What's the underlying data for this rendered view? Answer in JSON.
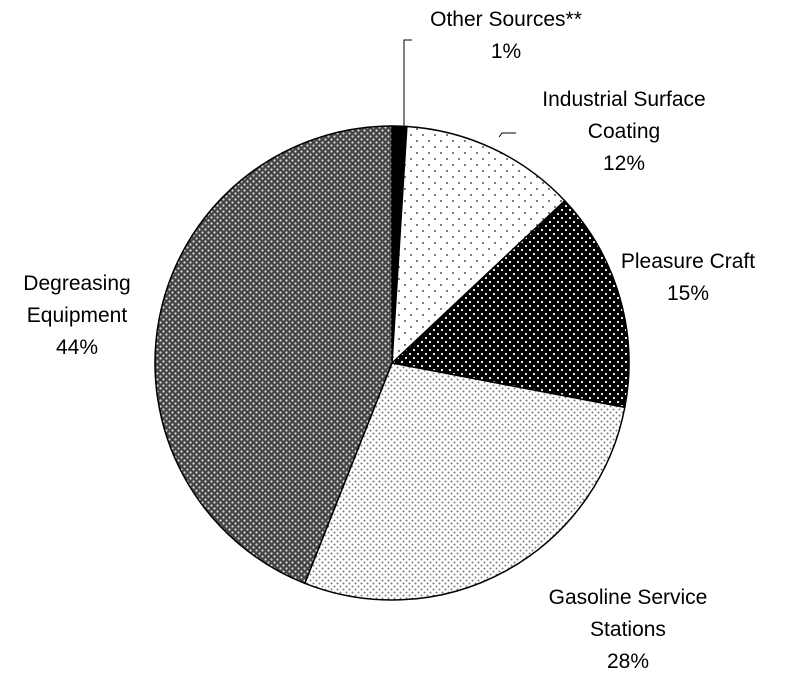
{
  "chart_data": {
    "type": "pie",
    "categories": [
      "Other Sources**",
      "Industrial Surface Coating",
      "Pleasure Craft",
      "Gasoline Service Stations",
      "Degreasing Equipment"
    ],
    "values": [
      1,
      12,
      15,
      28,
      44
    ],
    "value_labels": [
      "1%",
      "12%",
      "15%",
      "28%",
      "44%"
    ]
  }
}
